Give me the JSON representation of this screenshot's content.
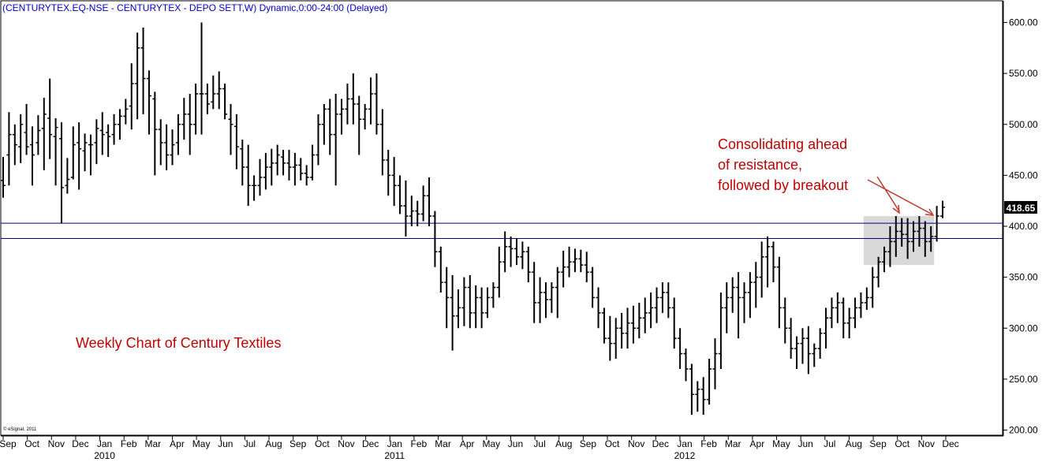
{
  "chart_data": {
    "type": "ohlc",
    "title": "(CENTURYTEX.EQ-NSE - CENTURYTEX - DEPO SETT,W) Dynamic,0:00-24:00 (Delayed)",
    "frequency": "Weekly",
    "credit": "© eSignal, 2011",
    "y_axis": {
      "position": "right",
      "ylim": [
        200,
        610
      ],
      "ticks": [
        200,
        250,
        300,
        350,
        400,
        450,
        500,
        550,
        600
      ],
      "tick_labels": [
        "200.00",
        "250.00",
        "300.00",
        "350.00",
        "400.00",
        "450.00",
        "500.00",
        "550.00",
        "600.00"
      ]
    },
    "x_axis": {
      "month_labels": [
        "Sep",
        "Oct",
        "Nov",
        "Dec",
        "Jan",
        "Feb",
        "Mar",
        "Apr",
        "May",
        "Jun",
        "Jul",
        "Aug",
        "Sep",
        "Oct",
        "Nov",
        "Dec",
        "Jan",
        "Feb",
        "Mar",
        "Apr",
        "May",
        "Jun",
        "Jul",
        "Aug",
        "Sep",
        "Oct",
        "Nov",
        "Dec",
        "Jan",
        "Feb",
        "Mar",
        "Apr",
        "May",
        "Jun",
        "Jul",
        "Aug",
        "Sep",
        "Oct",
        "Nov",
        "Dec"
      ],
      "year_labels": [
        "2010",
        "2011",
        "2012"
      ]
    },
    "last_price_label": "418.65",
    "last_price": 418.65,
    "horizontal_lines": [
      403,
      388
    ],
    "highlight_zone": {
      "y_low": 362,
      "y_high": 410,
      "description": "consolidation"
    },
    "annotations": [
      {
        "text_lines": [
          "Consolidating ahead",
          "of resistance,",
          "followed by breakout"
        ],
        "color": "#c00000"
      },
      {
        "text_lines": [
          "Weekly Chart of  Century Textiles"
        ],
        "color": "#c00000"
      }
    ],
    "series": [
      {
        "name": "CENTURYTEX",
        "ohlc": [
          [
            445,
            468,
            428,
            440
          ],
          [
            470,
            512,
            440,
            490
          ],
          [
            490,
            500,
            460,
            480
          ],
          [
            478,
            510,
            462,
            500
          ],
          [
            492,
            520,
            470,
            478
          ],
          [
            480,
            498,
            440,
            470
          ],
          [
            482,
            509,
            470,
            494
          ],
          [
            496,
            526,
            455,
            510
          ],
          [
            506,
            545,
            466,
            490
          ],
          [
            488,
            506,
            440,
            497
          ],
          [
            486,
            502,
            403,
            438
          ],
          [
            440,
            467,
            432,
            446
          ],
          [
            448,
            498,
            446,
            480
          ],
          [
            482,
            502,
            436,
            476
          ],
          [
            474,
            491,
            454,
            482
          ],
          [
            480,
            490,
            450,
            480
          ],
          [
            482,
            505,
            461,
            496
          ],
          [
            494,
            512,
            470,
            490
          ],
          [
            492,
            500,
            468,
            488
          ],
          [
            490,
            510,
            480,
            500
          ],
          [
            500,
            515,
            485,
            508
          ],
          [
            508,
            525,
            500,
            515
          ],
          [
            518,
            560,
            495,
            540
          ],
          [
            540,
            590,
            505,
            575
          ],
          [
            575,
            595,
            510,
            545
          ],
          [
            545,
            553,
            490,
            528
          ],
          [
            525,
            532,
            450,
            495
          ],
          [
            495,
            505,
            460,
            482
          ],
          [
            482,
            500,
            455,
            470
          ],
          [
            470,
            495,
            460,
            480
          ],
          [
            482,
            510,
            470,
            500
          ],
          [
            500,
            526,
            485,
            510
          ],
          [
            510,
            530,
            470,
            500
          ],
          [
            500,
            540,
            490,
            530
          ],
          [
            530,
            600,
            490,
            530
          ],
          [
            530,
            540,
            510,
            520
          ],
          [
            522,
            548,
            515,
            530
          ],
          [
            530,
            552,
            515,
            535
          ],
          [
            535,
            540,
            505,
            510
          ],
          [
            505,
            520,
            470,
            500
          ],
          [
            498,
            510,
            456,
            478
          ],
          [
            476,
            485,
            440,
            458
          ],
          [
            458,
            480,
            420,
            440
          ],
          [
            440,
            450,
            425,
            440
          ],
          [
            440,
            466,
            430,
            448
          ],
          [
            448,
            472,
            436,
            458
          ],
          [
            458,
            476,
            440,
            462
          ],
          [
            462,
            480,
            450,
            470
          ],
          [
            468,
            475,
            450,
            462
          ],
          [
            462,
            475,
            445,
            458
          ],
          [
            458,
            472,
            440,
            460
          ],
          [
            460,
            467,
            445,
            452
          ],
          [
            452,
            460,
            440,
            448
          ],
          [
            448,
            480,
            445,
            470
          ],
          [
            470,
            510,
            460,
            500
          ],
          [
            500,
            520,
            480,
            515
          ],
          [
            515,
            525,
            470,
            490
          ],
          [
            490,
            530,
            440,
            510
          ],
          [
            510,
            525,
            490,
            515
          ],
          [
            515,
            540,
            500,
            525
          ],
          [
            525,
            550,
            500,
            520
          ],
          [
            520,
            528,
            470,
            505
          ],
          [
            505,
            520,
            495,
            515
          ],
          [
            515,
            546,
            500,
            530
          ],
          [
            530,
            550,
            490,
            500
          ],
          [
            500,
            515,
            450,
            465
          ],
          [
            465,
            475,
            430,
            450
          ],
          [
            450,
            468,
            420,
            440
          ],
          [
            440,
            450,
            412,
            420
          ],
          [
            420,
            445,
            390,
            410
          ],
          [
            410,
            430,
            400,
            415
          ],
          [
            415,
            425,
            400,
            412
          ],
          [
            412,
            440,
            405,
            430
          ],
          [
            430,
            448,
            400,
            410
          ],
          [
            410,
            415,
            360,
            375
          ],
          [
            375,
            380,
            335,
            345
          ],
          [
            345,
            360,
            300,
            330
          ],
          [
            330,
            352,
            278,
            312
          ],
          [
            312,
            338,
            300,
            320
          ],
          [
            320,
            350,
            302,
            340
          ],
          [
            340,
            352,
            300,
            315
          ],
          [
            315,
            342,
            300,
            330
          ],
          [
            330,
            340,
            300,
            315
          ],
          [
            315,
            340,
            310,
            330
          ],
          [
            330,
            345,
            320,
            340
          ],
          [
            340,
            380,
            330,
            365
          ],
          [
            365,
            395,
            355,
            380
          ],
          [
            380,
            390,
            360,
            378
          ],
          [
            378,
            388,
            362,
            370
          ],
          [
            370,
            385,
            358,
            375
          ],
          [
            375,
            380,
            345,
            355
          ],
          [
            355,
            365,
            305,
            325
          ],
          [
            325,
            350,
            305,
            335
          ],
          [
            335,
            345,
            310,
            328
          ],
          [
            328,
            345,
            315,
            340
          ],
          [
            340,
            360,
            310,
            355
          ],
          [
            355,
            376,
            340,
            360
          ],
          [
            360,
            380,
            350,
            365
          ],
          [
            365,
            378,
            355,
            368
          ],
          [
            368,
            377,
            355,
            362
          ],
          [
            362,
            375,
            345,
            355
          ],
          [
            355,
            360,
            320,
            330
          ],
          [
            330,
            340,
            300,
            315
          ],
          [
            315,
            320,
            285,
            290
          ],
          [
            290,
            312,
            268,
            285
          ],
          [
            285,
            310,
            270,
            300
          ],
          [
            300,
            315,
            280,
            295
          ],
          [
            295,
            320,
            280,
            305
          ],
          [
            305,
            322,
            285,
            300
          ],
          [
            300,
            325,
            290,
            310
          ],
          [
            310,
            330,
            295,
            315
          ],
          [
            315,
            335,
            300,
            320
          ],
          [
            320,
            340,
            305,
            330
          ],
          [
            330,
            345,
            315,
            335
          ],
          [
            335,
            345,
            310,
            320
          ],
          [
            320,
            330,
            280,
            290
          ],
          [
            290,
            300,
            260,
            275
          ],
          [
            275,
            280,
            248,
            260
          ],
          [
            260,
            265,
            215,
            235
          ],
          [
            235,
            248,
            218,
            240
          ],
          [
            240,
            252,
            215,
            230
          ],
          [
            230,
            270,
            225,
            260
          ],
          [
            260,
            290,
            240,
            275
          ],
          [
            275,
            335,
            260,
            320
          ],
          [
            320,
            345,
            295,
            330
          ],
          [
            330,
            350,
            315,
            340
          ],
          [
            340,
            355,
            290,
            330
          ],
          [
            330,
            345,
            305,
            335
          ],
          [
            335,
            355,
            310,
            345
          ],
          [
            345,
            365,
            320,
            350
          ],
          [
            350,
            385,
            330,
            370
          ],
          [
            370,
            390,
            340,
            380
          ],
          [
            380,
            385,
            345,
            360
          ],
          [
            360,
            370,
            300,
            320
          ],
          [
            320,
            330,
            285,
            300
          ],
          [
            300,
            310,
            270,
            280
          ],
          [
            280,
            292,
            260,
            285
          ],
          [
            285,
            300,
            265,
            290
          ],
          [
            290,
            302,
            255,
            275
          ],
          [
            275,
            285,
            262,
            280
          ],
          [
            280,
            300,
            270,
            295
          ],
          [
            295,
            320,
            280,
            310
          ],
          [
            310,
            330,
            300,
            320
          ],
          [
            320,
            335,
            305,
            325
          ],
          [
            325,
            330,
            290,
            305
          ],
          [
            305,
            320,
            290,
            310
          ],
          [
            310,
            330,
            300,
            320
          ],
          [
            320,
            335,
            310,
            325
          ],
          [
            325,
            340,
            318,
            330
          ],
          [
            330,
            360,
            320,
            350
          ],
          [
            350,
            370,
            340,
            365
          ],
          [
            365,
            380,
            355,
            375
          ],
          [
            375,
            400,
            360,
            385
          ],
          [
            385,
            410,
            370,
            395
          ],
          [
            395,
            408,
            380,
            392
          ],
          [
            392,
            408,
            368,
            385
          ],
          [
            385,
            405,
            375,
            395
          ],
          [
            395,
            410,
            380,
            398
          ],
          [
            398,
            405,
            370,
            385
          ],
          [
            385,
            400,
            375,
            390
          ],
          [
            390,
            420,
            385,
            410
          ],
          [
            410,
            425,
            408,
            418.65
          ]
        ]
      }
    ]
  }
}
